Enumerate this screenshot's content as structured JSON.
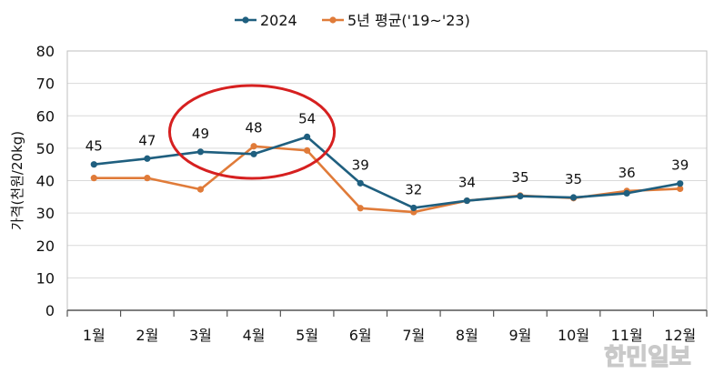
{
  "chart_data": {
    "type": "line",
    "ylabel": "가격(천원/20kg)",
    "ylim": [
      0,
      80
    ],
    "yticks": [
      0,
      10,
      20,
      30,
      40,
      50,
      60,
      70,
      80
    ],
    "categories": [
      "1월",
      "2월",
      "3월",
      "4월",
      "5월",
      "6월",
      "7월",
      "8월",
      "9월",
      "10월",
      "11월",
      "12월"
    ],
    "series": [
      {
        "name": "2024",
        "color": "#1f5f7f",
        "values": [
          45,
          46.8,
          48.9,
          48.2,
          53.5,
          39.2,
          31.6,
          33.8,
          35.2,
          34.8,
          36.1,
          39.1
        ],
        "labels": [
          "45",
          "47",
          "49",
          "48",
          "54",
          "39",
          "32",
          "34",
          "35",
          "35",
          "36",
          "39"
        ]
      },
      {
        "name": "5년 평균('19~'23)",
        "color": "#e07b39",
        "values": [
          40.8,
          40.8,
          37.3,
          50.6,
          49.3,
          31.5,
          30.3,
          33.8,
          35.4,
          34.6,
          36.8,
          37.5
        ]
      }
    ],
    "grid": true,
    "legend_position": "top-center",
    "annotation": {
      "shape": "ellipse",
      "color": "#d62020",
      "covers_categories": [
        "3월",
        "4월",
        "5월"
      ]
    }
  },
  "watermark": "한민일보"
}
